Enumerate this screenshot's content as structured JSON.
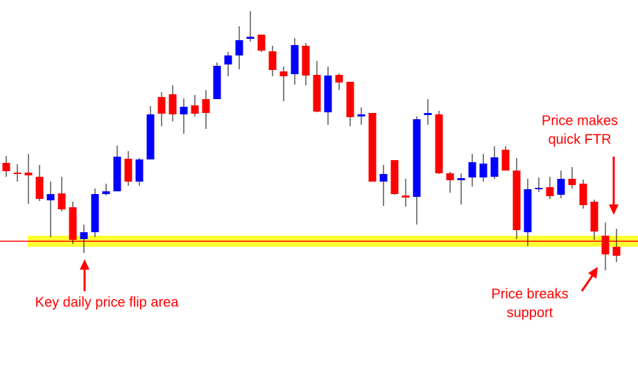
{
  "chart_data": {
    "type": "candlestick",
    "open": [
      306,
      292,
      292,
      286,
      252,
      262,
      242,
      196,
      206,
      261,
      265,
      312,
      279,
      311,
      401,
      405,
      376,
      389,
      398,
      398,
      448,
      461,
      485,
      491,
      467,
      438,
      434,
      475,
      433,
      379,
      433,
      423,
      373,
      378,
      279,
      310,
      259,
      257,
      375,
      376,
      291,
      281,
      285,
      285,
      286,
      325,
      295,
      206,
      268,
      271,
      260,
      283,
      276,
      250,
      201,
      185
    ],
    "high": [
      316,
      304,
      319,
      303,
      279,
      286,
      250,
      217,
      269,
      276,
      331,
      323,
      313,
      388,
      408,
      418,
      399,
      404,
      411,
      451,
      466,
      503,
      525,
      491,
      475,
      445,
      486,
      479,
      453,
      445,
      435,
      423,
      386,
      378,
      303,
      310,
      283,
      373,
      398,
      381,
      293,
      291,
      319,
      319,
      330,
      330,
      313,
      283,
      285,
      286,
      295,
      300,
      282,
      253,
      220,
      211
    ],
    "low": [
      286,
      279,
      247,
      251,
      199,
      236,
      189,
      176,
      199,
      259,
      265,
      273,
      273,
      311,
      359,
      366,
      348,
      373,
      355,
      398,
      431,
      441,
      481,
      466,
      431,
      395,
      419,
      418,
      379,
      361,
      411,
      359,
      361,
      279,
      244,
      260,
      243,
      217,
      361,
      290,
      263,
      246,
      272,
      279,
      283,
      295,
      196,
      186,
      264,
      254,
      255,
      269,
      240,
      195,
      151,
      163
    ],
    "close": [
      294,
      290,
      288,
      254,
      261,
      239,
      195,
      206,
      261,
      265,
      315,
      279,
      311,
      376,
      377,
      376,
      387,
      377,
      378,
      446,
      461,
      483,
      488,
      468,
      440,
      431,
      476,
      432,
      380,
      432,
      422,
      372,
      376,
      279,
      290,
      261,
      256,
      369,
      378,
      291,
      281,
      284,
      307,
      305,
      314,
      295,
      209,
      268,
      270,
      258,
      283,
      274,
      245,
      207,
      174,
      172
    ],
    "up_color": "#0000ff",
    "down_color": "#ff0000",
    "wick_color": "#000000",
    "ylim": [
      0,
      541
    ],
    "support": {
      "value": 193,
      "color": "#ff0000",
      "band_color": "#ffff33"
    },
    "annotations": [
      {
        "lines": [
          "Key daily price flip area"
        ]
      },
      {
        "lines": [
          "Price makes",
          "quick FTR"
        ]
      },
      {
        "lines": [
          "Price breaks",
          "support"
        ]
      }
    ]
  }
}
